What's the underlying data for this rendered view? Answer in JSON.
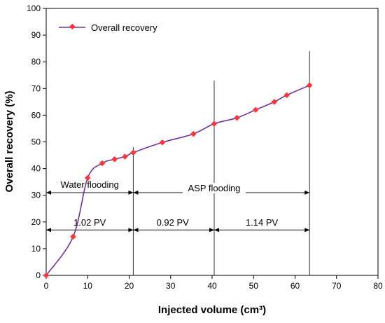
{
  "chart_data": {
    "type": "line",
    "title": "",
    "xlabel": "Injected volume (cm³)",
    "ylabel": "Overall recovery (%)",
    "xlim": [
      0,
      80
    ],
    "ylim": [
      0,
      100
    ],
    "xticks": [
      0,
      10,
      20,
      30,
      40,
      50,
      60,
      70,
      80
    ],
    "yticks": [
      0,
      10,
      20,
      30,
      40,
      50,
      60,
      70,
      80,
      90,
      100
    ],
    "grid": false,
    "legend_position": "top-left",
    "series": [
      {
        "name": "Overall recovery",
        "color": "#7030A0",
        "marker_color": "#FF3333",
        "x": [
          0,
          6.5,
          10,
          13.5,
          16.5,
          19,
          21,
          28,
          35.5,
          40.5,
          46,
          50.5,
          55,
          58,
          63.5
        ],
        "y": [
          0,
          14.5,
          36.5,
          42,
          43.5,
          44.5,
          46,
          49.8,
          53,
          56.8,
          59,
          62,
          65,
          67.5,
          71.2
        ]
      }
    ],
    "curve_color": "#7030A0",
    "vertical_lines": [
      {
        "x": 21,
        "top": 48
      },
      {
        "x": 40.5,
        "top": 73
      },
      {
        "x": 63.5,
        "top": 84
      }
    ],
    "annotations": [
      {
        "text": "Water flooding",
        "label_x": 10.5,
        "label_y": 32.8,
        "arrow_y": 31,
        "from": 0,
        "to": 21
      },
      {
        "text": "ASP flooding",
        "label_x": 40.5,
        "label_y": 31.5,
        "arrow_y": 31,
        "from": 21,
        "to": 63.5
      },
      {
        "text": "1.02 PV",
        "label_x": 10.5,
        "label_y": 18.7,
        "arrow_y": 17,
        "from": 0,
        "to": 21
      },
      {
        "text": "0.92 PV",
        "label_x": 30.5,
        "label_y": 18.7,
        "arrow_y": 17,
        "from": 21,
        "to": 40.5
      },
      {
        "text": "1.14 PV",
        "label_x": 52,
        "label_y": 18.7,
        "arrow_y": 17,
        "from": 40.5,
        "to": 63.5
      }
    ]
  }
}
